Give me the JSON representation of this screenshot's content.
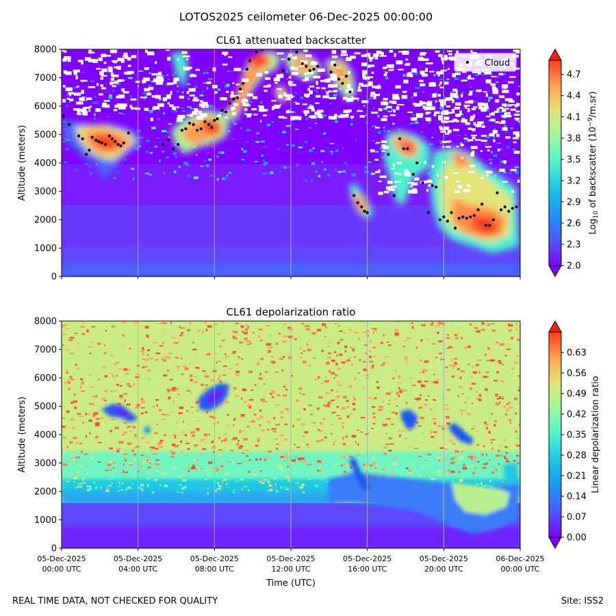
{
  "figure": {
    "title": "LOTOS2025 ceilometer 06-Dec-2025 00:00:00",
    "footer_left": "REAL TIME DATA, NOT CHECKED FOR QUALITY",
    "footer_right": "Site: ISS2"
  },
  "chart_data": [
    {
      "type": "heatmap",
      "title": "CL61 attenuated backscatter",
      "xlabel": "",
      "ylabel": "Altitude (meters)",
      "ylim": [
        0,
        8000
      ],
      "xlim_hours": [
        0,
        24
      ],
      "yticks": [
        0,
        1000,
        2000,
        3000,
        4000,
        5000,
        6000,
        7000,
        8000
      ],
      "xticks_hours": [
        0,
        4,
        8,
        12,
        16,
        20,
        24
      ],
      "xtick_labels": [],
      "vertical_gridlines_hours": [
        4,
        8,
        12,
        16,
        20
      ],
      "colorbar": {
        "label": "Log$_{10}$ of backscatter (10$^{-9}$/m.sr)",
        "label_main": "Log",
        "label_sub": "10",
        "label_mid": " of backscatter (10",
        "label_sup": "−9",
        "label_end": "/m.sr)",
        "range": [
          2.0,
          4.9
        ],
        "ticks": [
          2.0,
          2.3,
          2.6,
          2.9,
          3.2,
          3.5,
          3.8,
          4.1,
          4.4,
          4.7
        ],
        "tick_labels": [
          "2.0",
          "2.3",
          "2.6",
          "2.9",
          "3.2",
          "3.5",
          "3.8",
          "4.1",
          "4.4",
          "4.7"
        ],
        "colormap": "rainbow",
        "extend": "both"
      },
      "legend": {
        "entries": [
          "Cloud"
        ],
        "placement": "top-right"
      },
      "series": [
        {
          "name": "Cloud",
          "marker": "dot",
          "hours": [
            0.1,
            0.4,
            0.9,
            1.1,
            1.3,
            1.45,
            1.6,
            1.8,
            1.95,
            2.1,
            2.3,
            2.5,
            2.65,
            2.8,
            2.95,
            3.1,
            3.25,
            3.5,
            5.3,
            5.6,
            5.85,
            6.1,
            6.3,
            6.5,
            6.7,
            6.9,
            7.1,
            7.3,
            7.5,
            7.7,
            7.85,
            8.0,
            8.15,
            8.4,
            8.6,
            8.8,
            9.0,
            9.2,
            9.35,
            9.5,
            9.7,
            9.85,
            10.2,
            10.5,
            11.6,
            11.9,
            12.3,
            12.6,
            12.8,
            13.0,
            13.2,
            13.4,
            14.1,
            14.3,
            14.5,
            14.7,
            14.9,
            15.1,
            15.3,
            15.5,
            15.7,
            15.85,
            16.0,
            17.1,
            17.4,
            17.7,
            17.9,
            18.1,
            18.4,
            18.6,
            18.9,
            19.2,
            19.4,
            19.6,
            19.8,
            20.0,
            20.2,
            20.4,
            20.6,
            20.8,
            21.0,
            21.2,
            21.4,
            21.6,
            21.8,
            22.0,
            22.2,
            22.4,
            22.6,
            22.8,
            23.0,
            23.2,
            23.4,
            23.6,
            23.8
          ],
          "altitude_m": [
            5650,
            5350,
            4950,
            4850,
            4300,
            4450,
            4900,
            4800,
            4750,
            4700,
            4650,
            4950,
            4850,
            4750,
            4650,
            4600,
            4700,
            5050,
            4650,
            4800,
            4500,
            4650,
            5150,
            5200,
            5400,
            5350,
            5150,
            5200,
            5450,
            5350,
            5250,
            5500,
            5550,
            5850,
            5800,
            6100,
            6250,
            6300,
            6600,
            6800,
            7300,
            7600,
            7900,
            8000,
            7250,
            7650,
            7900,
            7500,
            7400,
            7250,
            7300,
            7400,
            7200,
            7450,
            6950,
            6800,
            7050,
            6500,
            2850,
            2600,
            2450,
            2300,
            2250,
            4300,
            2850,
            4850,
            4500,
            4500,
            3600,
            4000,
            3300,
            2250,
            3200,
            3150,
            2000,
            2100,
            1950,
            2250,
            1700,
            2050,
            2100,
            2050,
            2100,
            2150,
            2350,
            2550,
            1800,
            1800,
            2000,
            2950,
            2350,
            2450,
            2300,
            2400,
            2450
          ]
        }
      ]
    },
    {
      "type": "heatmap",
      "title": "CL61 depolarization ratio",
      "xlabel": "Time (UTC)",
      "ylabel": "Altitude (meters)",
      "ylim": [
        0,
        8000
      ],
      "xlim_hours": [
        0,
        24
      ],
      "yticks": [
        0,
        1000,
        2000,
        3000,
        4000,
        5000,
        6000,
        7000,
        8000
      ],
      "xticks_hours": [
        0,
        4,
        8,
        12,
        16,
        20,
        24
      ],
      "xtick_labels": [
        [
          "05-Dec-2025",
          "00:00 UTC"
        ],
        [
          "05-Dec-2025",
          "04:00 UTC"
        ],
        [
          "05-Dec-2025",
          "08:00 UTC"
        ],
        [
          "05-Dec-2025",
          "12:00 UTC"
        ],
        [
          "05-Dec-2025",
          "16:00 UTC"
        ],
        [
          "05-Dec-2025",
          "20:00 UTC"
        ],
        [
          "06-Dec-2025",
          "00:00 UTC"
        ]
      ],
      "vertical_gridlines_hours": [
        4,
        8,
        12,
        16,
        20
      ],
      "colorbar": {
        "label": "Linear depolarization ratio",
        "range": [
          0.0,
          0.7
        ],
        "ticks": [
          0.0,
          0.07,
          0.14,
          0.21,
          0.28,
          0.35,
          0.42,
          0.49,
          0.56,
          0.63
        ],
        "tick_labels": [
          "0.00",
          "0.07",
          "0.14",
          "0.21",
          "0.28",
          "0.35",
          "0.42",
          "0.49",
          "0.56",
          "0.63"
        ],
        "colormap": "rainbow",
        "extend": "both"
      }
    }
  ]
}
